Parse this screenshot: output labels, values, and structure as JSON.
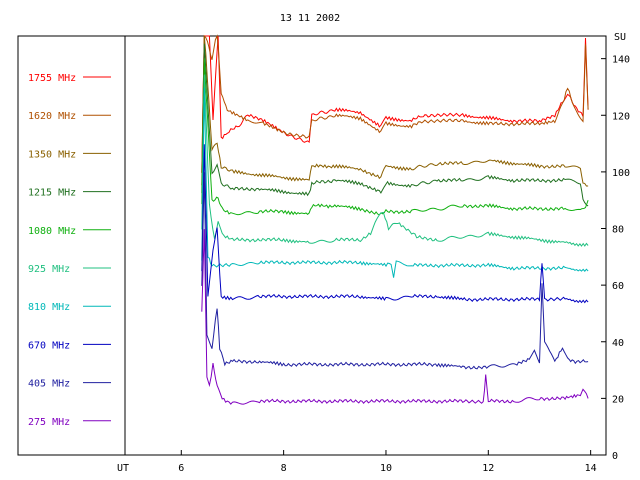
{
  "chart_data": {
    "type": "line",
    "title": "13 11 2002",
    "xlabel": "UT",
    "ylabel": "SU",
    "xlim": [
      4.9,
      14.3
    ],
    "ylim": [
      0,
      148
    ],
    "xticks": [
      6,
      8,
      10,
      12,
      14
    ],
    "yticks": [
      0,
      20,
      40,
      60,
      80,
      100,
      120,
      140
    ],
    "ut_marker": 4.9,
    "grid": false,
    "legend_placement": "left",
    "series": [
      {
        "name": "1755 MHz",
        "color": "#ff0000",
        "points": [
          [
            6.4,
            100
          ],
          [
            6.45,
            150
          ],
          [
            6.55,
            150
          ],
          [
            6.62,
            118
          ],
          [
            6.72,
            150
          ],
          [
            6.78,
            112
          ],
          [
            6.9,
            114
          ],
          [
            7.1,
            116
          ],
          [
            7.3,
            120
          ],
          [
            7.6,
            118
          ],
          [
            8.0,
            114
          ],
          [
            8.5,
            110
          ],
          [
            8.55,
            120
          ],
          [
            9.0,
            122
          ],
          [
            9.5,
            121
          ],
          [
            9.9,
            116
          ],
          [
            10.0,
            119
          ],
          [
            10.5,
            118
          ],
          [
            10.7,
            120
          ],
          [
            11.5,
            120
          ],
          [
            12.0,
            119
          ],
          [
            12.5,
            118
          ],
          [
            13.0,
            118
          ],
          [
            13.3,
            120
          ],
          [
            13.45,
            125
          ],
          [
            13.55,
            128
          ],
          [
            13.7,
            123
          ],
          [
            13.85,
            120
          ],
          [
            13.9,
            147
          ],
          [
            13.95,
            122
          ]
        ]
      },
      {
        "name": "1620 MHz",
        "color": "#b05000",
        "points": [
          [
            6.4,
            100
          ],
          [
            6.45,
            150
          ],
          [
            6.6,
            140
          ],
          [
            6.7,
            150
          ],
          [
            6.78,
            128
          ],
          [
            6.9,
            122
          ],
          [
            7.3,
            118
          ],
          [
            7.6,
            117
          ],
          [
            8.0,
            114
          ],
          [
            8.5,
            112
          ],
          [
            8.55,
            118
          ],
          [
            9.0,
            120
          ],
          [
            9.5,
            119
          ],
          [
            9.9,
            114
          ],
          [
            10.0,
            117
          ],
          [
            10.5,
            116
          ],
          [
            10.7,
            118
          ],
          [
            11.5,
            118
          ],
          [
            12.0,
            117
          ],
          [
            12.5,
            117
          ],
          [
            13.0,
            117
          ],
          [
            13.3,
            118
          ],
          [
            13.45,
            124
          ],
          [
            13.55,
            130
          ],
          [
            13.65,
            124
          ],
          [
            13.85,
            118
          ],
          [
            13.9,
            145
          ],
          [
            13.95,
            122
          ]
        ]
      },
      {
        "name": "1350 MHz",
        "color": "#8a6000",
        "points": [
          [
            6.4,
            95
          ],
          [
            6.45,
            150
          ],
          [
            6.6,
            108
          ],
          [
            6.7,
            110
          ],
          [
            6.78,
            102
          ],
          [
            7.0,
            100
          ],
          [
            7.5,
            99
          ],
          [
            8.0,
            98
          ],
          [
            8.5,
            97
          ],
          [
            8.55,
            102
          ],
          [
            9.0,
            102
          ],
          [
            9.5,
            101
          ],
          [
            9.9,
            98
          ],
          [
            10.0,
            102
          ],
          [
            10.5,
            101
          ],
          [
            11.0,
            103
          ],
          [
            11.5,
            103
          ],
          [
            12.0,
            104
          ],
          [
            12.5,
            103
          ],
          [
            13.0,
            102
          ],
          [
            13.5,
            102
          ],
          [
            13.8,
            101
          ],
          [
            13.85,
            96
          ],
          [
            13.95,
            95
          ]
        ]
      },
      {
        "name": "1215 MHz",
        "color": "#207020",
        "points": [
          [
            6.4,
            92
          ],
          [
            6.45,
            145
          ],
          [
            6.6,
            100
          ],
          [
            6.7,
            102
          ],
          [
            6.78,
            96
          ],
          [
            7.0,
            94
          ],
          [
            7.5,
            94
          ],
          [
            8.0,
            93
          ],
          [
            8.5,
            92
          ],
          [
            8.55,
            96
          ],
          [
            9.0,
            97
          ],
          [
            9.5,
            96
          ],
          [
            9.9,
            93
          ],
          [
            10.0,
            96
          ],
          [
            10.5,
            95
          ],
          [
            11.0,
            97
          ],
          [
            11.5,
            97
          ],
          [
            12.0,
            98
          ],
          [
            12.5,
            97
          ],
          [
            13.0,
            97
          ],
          [
            13.5,
            97
          ],
          [
            13.8,
            96
          ],
          [
            13.85,
            90
          ],
          [
            13.95,
            88
          ]
        ]
      },
      {
        "name": "1080 MHz",
        "color": "#10b010",
        "points": [
          [
            6.4,
            88
          ],
          [
            6.45,
            140
          ],
          [
            6.6,
            90
          ],
          [
            6.72,
            91
          ],
          [
            6.8,
            87
          ],
          [
            7.0,
            85
          ],
          [
            7.5,
            86
          ],
          [
            8.0,
            86
          ],
          [
            8.5,
            85
          ],
          [
            8.55,
            88
          ],
          [
            9.0,
            88
          ],
          [
            9.5,
            87
          ],
          [
            9.9,
            85
          ],
          [
            10.0,
            86
          ],
          [
            10.5,
            86
          ],
          [
            11.0,
            87
          ],
          [
            11.5,
            88
          ],
          [
            12.0,
            88
          ],
          [
            12.5,
            87
          ],
          [
            13.0,
            87
          ],
          [
            13.5,
            87
          ],
          [
            13.8,
            86
          ],
          [
            13.9,
            88
          ],
          [
            13.95,
            90
          ]
        ]
      },
      {
        "name": "925 MHz",
        "color": "#20c080",
        "points": [
          [
            6.4,
            80
          ],
          [
            6.45,
            135
          ],
          [
            6.55,
            88
          ],
          [
            6.65,
            76
          ],
          [
            6.72,
            83
          ],
          [
            6.8,
            78
          ],
          [
            7.0,
            76
          ],
          [
            7.5,
            76
          ],
          [
            8.0,
            76
          ],
          [
            8.5,
            75
          ],
          [
            9.0,
            76
          ],
          [
            9.5,
            76
          ],
          [
            9.7,
            78
          ],
          [
            9.85,
            84
          ],
          [
            9.95,
            86
          ],
          [
            10.05,
            80
          ],
          [
            10.2,
            82
          ],
          [
            10.4,
            80
          ],
          [
            10.6,
            77
          ],
          [
            11.0,
            76
          ],
          [
            11.5,
            77
          ],
          [
            12.0,
            78
          ],
          [
            12.5,
            77
          ],
          [
            13.0,
            76
          ],
          [
            13.5,
            75
          ],
          [
            13.95,
            74
          ]
        ]
      },
      {
        "name": "810 MHz",
        "color": "#00b8b8",
        "points": [
          [
            6.4,
            68
          ],
          [
            6.45,
            130
          ],
          [
            6.52,
            70
          ],
          [
            6.6,
            67
          ],
          [
            7.0,
            67
          ],
          [
            7.5,
            68
          ],
          [
            8.0,
            68
          ],
          [
            8.5,
            68
          ],
          [
            9.0,
            68
          ],
          [
            9.5,
            68
          ],
          [
            10.0,
            67
          ],
          [
            10.1,
            68
          ],
          [
            10.15,
            62
          ],
          [
            10.2,
            68
          ],
          [
            10.5,
            67
          ],
          [
            11.0,
            67
          ],
          [
            11.5,
            67
          ],
          [
            12.0,
            67
          ],
          [
            12.5,
            66
          ],
          [
            13.0,
            66
          ],
          [
            13.5,
            66
          ],
          [
            13.95,
            65
          ]
        ]
      },
      {
        "name": "670 MHz",
        "color": "#0000c0",
        "points": [
          [
            6.4,
            65
          ],
          [
            6.45,
            110
          ],
          [
            6.52,
            56
          ],
          [
            6.62,
            72
          ],
          [
            6.7,
            80
          ],
          [
            6.78,
            56
          ],
          [
            7.0,
            55
          ],
          [
            7.5,
            56
          ],
          [
            8.0,
            56
          ],
          [
            8.5,
            56
          ],
          [
            9.0,
            56
          ],
          [
            9.5,
            56
          ],
          [
            10.0,
            55
          ],
          [
            10.5,
            56
          ],
          [
            11.0,
            56
          ],
          [
            11.5,
            55
          ],
          [
            12.0,
            55
          ],
          [
            12.5,
            55
          ],
          [
            13.0,
            55
          ],
          [
            13.05,
            68
          ],
          [
            13.1,
            55
          ],
          [
            13.5,
            55
          ],
          [
            13.95,
            54
          ]
        ]
      },
      {
        "name": "405 MHz",
        "color": "#2020a0",
        "points": [
          [
            6.4,
            60
          ],
          [
            6.45,
            100
          ],
          [
            6.5,
            42
          ],
          [
            6.6,
            38
          ],
          [
            6.7,
            52
          ],
          [
            6.75,
            38
          ],
          [
            6.85,
            32
          ],
          [
            7.0,
            33
          ],
          [
            7.5,
            33
          ],
          [
            8.0,
            32
          ],
          [
            8.5,
            32
          ],
          [
            9.0,
            32
          ],
          [
            9.5,
            32
          ],
          [
            10.0,
            32
          ],
          [
            10.5,
            32
          ],
          [
            11.0,
            32
          ],
          [
            11.5,
            31
          ],
          [
            12.0,
            31
          ],
          [
            12.5,
            32
          ],
          [
            12.8,
            34
          ],
          [
            12.9,
            37
          ],
          [
            13.0,
            33
          ],
          [
            13.05,
            60
          ],
          [
            13.1,
            40
          ],
          [
            13.2,
            36
          ],
          [
            13.3,
            33
          ],
          [
            13.45,
            38
          ],
          [
            13.55,
            34
          ],
          [
            13.7,
            33
          ],
          [
            13.95,
            33
          ]
        ]
      },
      {
        "name": "275 MHz",
        "color": "#8000c0",
        "points": [
          [
            6.4,
            50
          ],
          [
            6.45,
            80
          ],
          [
            6.5,
            28
          ],
          [
            6.55,
            24
          ],
          [
            6.62,
            32
          ],
          [
            6.7,
            24
          ],
          [
            6.8,
            20
          ],
          [
            7.0,
            18
          ],
          [
            7.5,
            19
          ],
          [
            8.0,
            19
          ],
          [
            8.5,
            19
          ],
          [
            9.0,
            19
          ],
          [
            9.5,
            19
          ],
          [
            10.0,
            19
          ],
          [
            10.5,
            19
          ],
          [
            11.0,
            19
          ],
          [
            11.5,
            19
          ],
          [
            11.9,
            19
          ],
          [
            11.95,
            28
          ],
          [
            12.0,
            19
          ],
          [
            12.5,
            19
          ],
          [
            13.0,
            20
          ],
          [
            13.5,
            20
          ],
          [
            13.8,
            21
          ],
          [
            13.85,
            23
          ],
          [
            13.95,
            20
          ]
        ]
      }
    ]
  }
}
